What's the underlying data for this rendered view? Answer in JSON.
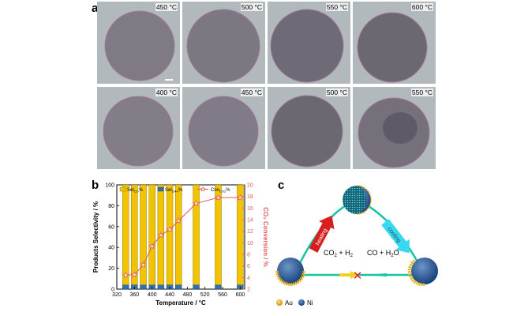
{
  "panels": {
    "a": "a",
    "b": "b",
    "c": "c"
  },
  "tem": {
    "row1": [
      "450 °C",
      "500 °C",
      "550 °C",
      "600 °C"
    ],
    "row2": [
      "400 °C",
      "450 °C",
      "500 °C",
      "550 °C"
    ]
  },
  "chart_data": {
    "type": "bar",
    "xlabel": "Temperature / °C",
    "ylabel": "Products Selectivity / %",
    "y2label": "CO₂ Conversion / %",
    "xlim": [
      320,
      610
    ],
    "xticks": [
      320,
      360,
      400,
      440,
      480,
      520,
      560,
      600
    ],
    "ylim": [
      0,
      100
    ],
    "yticks": [
      0,
      20,
      40,
      60,
      80,
      100
    ],
    "y2lim": [
      2,
      20
    ],
    "y2ticks": [
      2,
      4,
      6,
      8,
      10,
      12,
      14,
      16,
      18,
      20
    ],
    "legend": {
      "sel_co": "Sel",
      "sel_co_sub": "CO",
      "sel_ch4": "Sel",
      "sel_ch4_sub": "CH4",
      "con": "Con",
      "con_sub": "CO2"
    },
    "x": [
      340,
      360,
      380,
      400,
      420,
      440,
      460,
      500,
      550,
      600
    ],
    "series": [
      {
        "name": "Sel_CO%",
        "color": "#f2c400",
        "values": [
          96,
          96,
          96,
          96,
          96,
          96,
          96,
          96,
          96,
          96
        ]
      },
      {
        "name": "Sel_CH4%",
        "color": "#2f6fb6",
        "values": [
          4,
          4,
          4,
          4,
          4,
          4,
          4,
          4,
          4,
          4
        ]
      },
      {
        "name": "Con_CO2%",
        "color": "#e05a5a",
        "axis": "right",
        "values": [
          4.4,
          4.5,
          6.2,
          9.4,
          11.3,
          12.3,
          13.8,
          16.8,
          17.8,
          17.8
        ]
      }
    ]
  },
  "diagram": {
    "heating": "heating",
    "cooling": "cooling",
    "left_eq": "CO2 + H2",
    "right_eq": "CO + H2O",
    "cross": "✕",
    "legend_au": "Au",
    "legend_ni": "Ni"
  },
  "colors": {
    "au": "#e6b418",
    "ni": "#1f4e8c",
    "teal": "#17c4a4",
    "red": "#d62020",
    "cyan": "#38d8ee"
  }
}
